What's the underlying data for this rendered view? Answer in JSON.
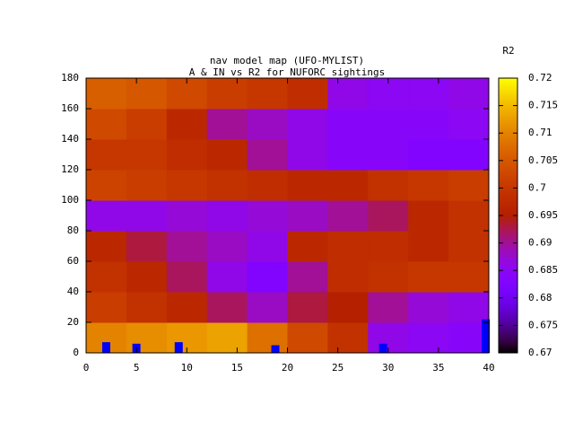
{
  "chart_data": {
    "type": "heatmap",
    "title": "nav model map (UFO-MYLIST)",
    "subtitle": "A & IN vs R2 for NUFORC sightings",
    "colorbar_label": "R2",
    "x": [
      2,
      6,
      10,
      14,
      18,
      22,
      26,
      30,
      34,
      38
    ],
    "y": [
      10,
      30,
      50,
      70,
      90,
      110,
      130,
      150,
      170
    ],
    "z": [
      [
        0.71,
        0.711,
        0.712,
        0.713,
        0.708,
        0.703,
        0.699,
        0.686,
        0.685,
        0.684
      ],
      [
        0.701,
        0.699,
        0.697,
        0.692,
        0.688,
        0.693,
        0.695,
        0.69,
        0.687,
        0.686
      ],
      [
        0.699,
        0.697,
        0.692,
        0.686,
        0.683,
        0.69,
        0.698,
        0.699,
        0.7,
        0.7
      ],
      [
        0.697,
        0.693,
        0.69,
        0.688,
        0.686,
        0.697,
        0.698,
        0.698,
        0.697,
        0.699
      ],
      [
        0.686,
        0.686,
        0.687,
        0.686,
        0.687,
        0.688,
        0.69,
        0.692,
        0.697,
        0.699
      ],
      [
        0.702,
        0.701,
        0.7,
        0.699,
        0.698,
        0.697,
        0.697,
        0.699,
        0.7,
        0.701
      ],
      [
        0.7,
        0.7,
        0.698,
        0.697,
        0.69,
        0.686,
        0.684,
        0.684,
        0.683,
        0.683
      ],
      [
        0.703,
        0.701,
        0.697,
        0.69,
        0.688,
        0.686,
        0.684,
        0.684,
        0.684,
        0.685
      ],
      [
        0.706,
        0.705,
        0.703,
        0.701,
        0.7,
        0.698,
        0.686,
        0.685,
        0.685,
        0.686
      ]
    ],
    "markers": {
      "color": "#0000ff",
      "x": [
        2,
        5,
        9.2,
        18.8,
        29.5,
        39.7
      ],
      "values": [
        7,
        6,
        7,
        5,
        6,
        22
      ]
    },
    "xlim": [
      0,
      40
    ],
    "xticks": [
      0,
      5,
      10,
      15,
      20,
      25,
      30,
      35,
      40
    ],
    "ylim": [
      0,
      180
    ],
    "yticks": [
      0,
      20,
      40,
      60,
      80,
      100,
      120,
      140,
      160,
      180
    ],
    "clim": [
      0.67,
      0.72
    ],
    "cticks": [
      0.67,
      0.675,
      0.68,
      0.685,
      0.69,
      0.695,
      0.7,
      0.705,
      0.71,
      0.715,
      0.72
    ]
  }
}
